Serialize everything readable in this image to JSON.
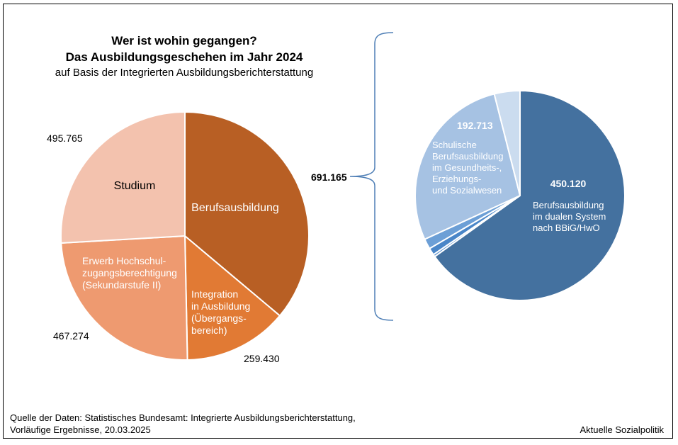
{
  "title": {
    "line1": "Wer ist wohin gegangen?",
    "line2": "Das Ausbildungsgeschehen im Jahr 2024",
    "line3": "auf Basis der Integrierten Ausbildungsberichterstattung"
  },
  "source": {
    "line1": "Quelle der Daten: Statistisches Bundesamt: Integrierte Ausbildungsberichterstattung,",
    "line2": "Vorläufige Ergebnisse, 20.03.2025"
  },
  "brand": "Aktuelle Sozialpolitik",
  "colors": {
    "berufsausbildung": "#b85f24",
    "integration": "#e17a34",
    "hochschulzugang": "#ee9a70",
    "studium": "#f3c2ae",
    "dual": "#44719f",
    "schulisch": "#a6c2e3",
    "small1": "#5b92d0",
    "small2": "#4a86c8",
    "small3": "#6c9fd6",
    "small4": "#cbdcef",
    "bracket": "#4f7fb6"
  },
  "chart_data": [
    {
      "type": "pie",
      "start": "12 o'clock, clockwise",
      "slices": [
        {
          "key": "berufsausbildung",
          "label": [
            "Berufsausbildung"
          ],
          "value": 691165,
          "value_label": "691.165"
        },
        {
          "key": "integration",
          "label": [
            "Integration",
            "in Ausbildung",
            "(Übergangs-",
            "bereich)"
          ],
          "value": 259430,
          "value_label": "259.430"
        },
        {
          "key": "hochschulzugang",
          "label": [
            "Erwerb Hochschul-",
            "zugangsberechtigung",
            "(Sekundarstufe II)"
          ],
          "value": 467274,
          "value_label": "467.274"
        },
        {
          "key": "studium",
          "label": [
            "Studium"
          ],
          "value": 495765,
          "value_label": "495.765"
        }
      ]
    },
    {
      "type": "pie",
      "start": "12 o'clock, clockwise",
      "total": 691165,
      "slices": [
        {
          "key": "dual",
          "label": [
            "Berufsausbildung",
            "im dualen System",
            "nach BBiG/HwO"
          ],
          "value": 450120,
          "value_label": "450.120"
        },
        {
          "key": "small1",
          "label": [],
          "value": 2500
        },
        {
          "key": "small2",
          "label": [],
          "value": 7500
        },
        {
          "key": "small3",
          "label": [],
          "value": 11000
        },
        {
          "key": "schulisch",
          "label": [
            "Schulische",
            "Berufsausbildung",
            "im Gesundheits-,",
            "Erziehungs-",
            "und Sozialwesen"
          ],
          "value": 192713,
          "value_label": "192.713"
        },
        {
          "key": "small4",
          "label": [],
          "value": 27332
        }
      ]
    }
  ]
}
